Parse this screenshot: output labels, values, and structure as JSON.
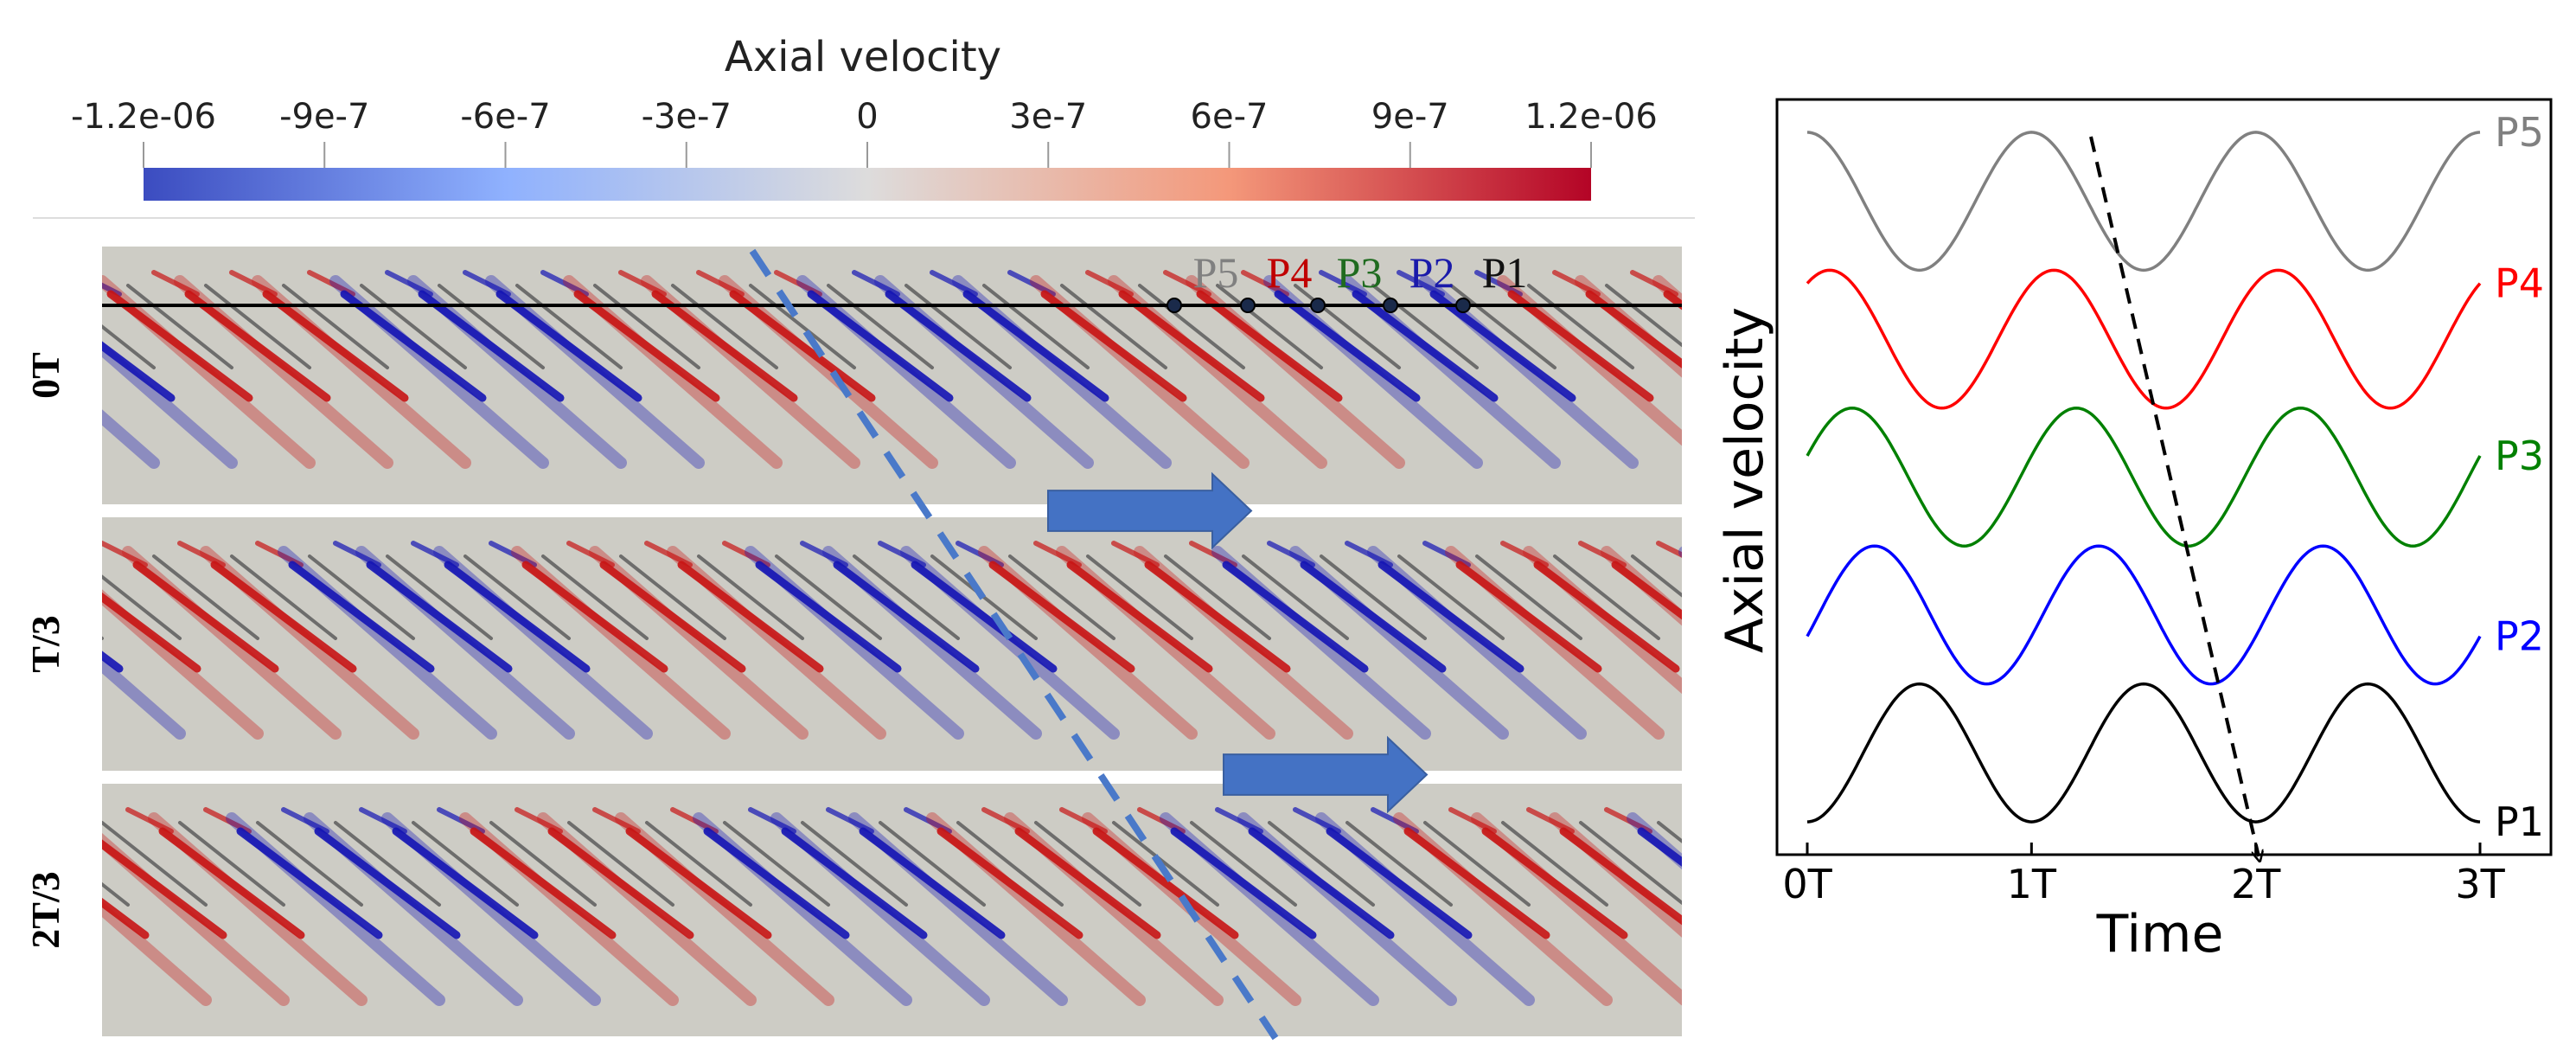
{
  "colorbar": {
    "title": "Axial velocity",
    "ticks": [
      "-1.2e-06",
      "-9e-7",
      "-6e-7",
      "-3e-7",
      "0",
      "3e-7",
      "6e-7",
      "9e-7",
      "1.2e-06"
    ],
    "colors": [
      "#3b4cc0",
      "#dddcdc",
      "#b40426"
    ]
  },
  "panels": [
    {
      "label": "0T"
    },
    {
      "label": "T/3"
    },
    {
      "label": "2T/3"
    }
  ],
  "probes": [
    {
      "name": "P5",
      "color": "#808080"
    },
    {
      "name": "P4",
      "color": "#c00000"
    },
    {
      "name": "P3",
      "color": "#1f6b1f"
    },
    {
      "name": "P2",
      "color": "#1a1aaa"
    },
    {
      "name": "P1",
      "color": "#111111"
    }
  ],
  "colors": {
    "field_background": "#cdccc5",
    "arrow": "#4472c4",
    "dashed_line": "#4a79c9",
    "positive": "#c81414",
    "negative": "#1414b4"
  },
  "chart_data": {
    "type": "line",
    "title": "",
    "xlabel": "Time",
    "ylabel": "Axial velocity",
    "xlim": [
      0,
      3
    ],
    "xticks": [
      0,
      1,
      2,
      3
    ],
    "xticklabels": [
      "0T",
      "1T",
      "2T",
      "3T"
    ],
    "y_ticks_shown": false,
    "period": 1,
    "series": [
      {
        "name": "P5",
        "color": "#808080",
        "offset": 4,
        "phase_peak": 0.0
      },
      {
        "name": "P4",
        "color": "#ff0000",
        "offset": 3,
        "phase_peak": 0.1
      },
      {
        "name": "P3",
        "color": "#008000",
        "offset": 2,
        "phase_peak": 0.2
      },
      {
        "name": "P2",
        "color": "#0000ff",
        "offset": 1,
        "phase_peak": 0.3
      },
      {
        "name": "P1",
        "color": "#000000",
        "offset": 0,
        "phase_peak": 0.5
      }
    ],
    "amplitude": 0.5
  }
}
